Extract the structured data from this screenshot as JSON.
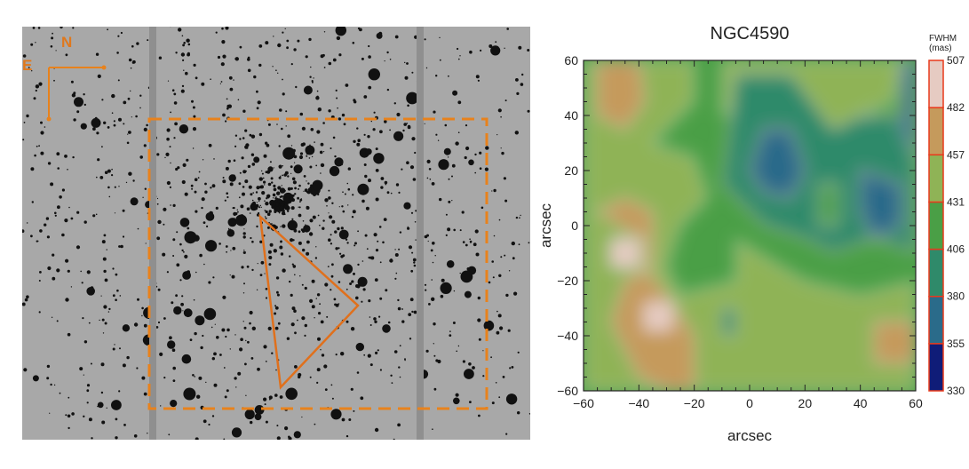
{
  "left_panel": {
    "compass": {
      "north_label": "N",
      "east_label": "E"
    },
    "overlay_color": "#e8821c"
  },
  "chart_data": {
    "type": "heatmap",
    "title": "NGC4590",
    "xlabel": "arcsec",
    "ylabel": "arcsec",
    "xlim": [
      -60,
      60
    ],
    "ylim": [
      -60,
      60
    ],
    "xticks": [
      -60,
      -40,
      -20,
      0,
      20,
      40,
      60
    ],
    "yticks": [
      -60,
      -40,
      -20,
      0,
      20,
      40,
      60
    ],
    "colorbar": {
      "title_line1": "FWHM",
      "title_line2": "(mas)",
      "levels": [
        330,
        355,
        380,
        406,
        431,
        457,
        482,
        507
      ],
      "colors": [
        "#0f1c78",
        "#2a6b8a",
        "#2f8a6a",
        "#4a9f46",
        "#8fb356",
        "#c59a5c",
        "#e6cbc2"
      ]
    },
    "grid": false,
    "legend": "colorbar-right"
  }
}
